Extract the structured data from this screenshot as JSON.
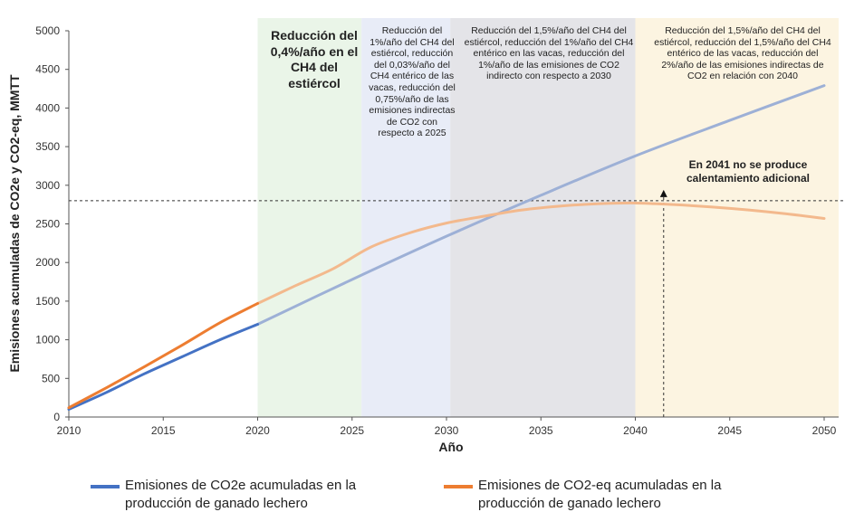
{
  "chart_data": {
    "type": "line",
    "xlabel": "Año",
    "ylabel": "Emisiones acumuladas de CO2e y CO2-eq, MMTT",
    "xlim": [
      2010,
      2050
    ],
    "ylim": [
      0,
      5000
    ],
    "xticks": [
      2010,
      2015,
      2020,
      2025,
      2030,
      2035,
      2040,
      2045,
      2050
    ],
    "yticks": [
      0,
      500,
      1000,
      1500,
      2000,
      2500,
      3000,
      3500,
      4000,
      4500,
      5000
    ],
    "grid": false,
    "legend_position": "bottom",
    "threshold": {
      "y": 2800,
      "style": "dashed"
    },
    "marker": {
      "x": 2041.5,
      "style": "dashed-arrow"
    },
    "bands": [
      {
        "x_start": 2020,
        "x_end": 2025.5,
        "color": "#eaf5e8",
        "text": "Reducción del 0,4%/año en el CH4 del estiércol"
      },
      {
        "x_start": 2025.5,
        "x_end": 2030.2,
        "color": "#e8ecf7",
        "text": "Reducción del 1%/año del CH4 del estiércol, reducción del 0,03%/año del CH4 entérico de las vacas, reducción del 0,75%/año de las emisiones indirectas de CO2 con respecto a 2025"
      },
      {
        "x_start": 2030.2,
        "x_end": 2040,
        "color": "#e4e4e8",
        "text": "Reducción del 1,5%/año del CH4 del estiércol, reducción del 1%/año del CH4 entérico en las vacas, reducción del 1%/año de las emisiones de CO2 indirecto con respecto a 2030"
      },
      {
        "x_start": 2040,
        "x_end": 2051,
        "color": "#fcf4e1",
        "text": "Reducción del 1,5%/año del CH4 del estiércol, reducción del 1,5%/año del CH4 entérico de las vacas, reducción del 2%/año de las emisiones indirectas de CO2 en relación con 2040"
      }
    ],
    "annotation": "En 2041 no se produce calentamiento adicional",
    "series": [
      {
        "name": "Emisiones de CO2e acumuladas en la producción de ganado lechero",
        "color": "#4472c4",
        "projection_color": "#9db0d6",
        "projection_from": 2020,
        "x": [
          2010,
          2012,
          2014,
          2016,
          2018,
          2020,
          2025,
          2030,
          2035,
          2040,
          2045,
          2050
        ],
        "values": [
          100,
          320,
          560,
          780,
          1000,
          1200,
          1780,
          2340,
          2870,
          3380,
          3840,
          4290
        ]
      },
      {
        "name": "Emisiones de CO2-eq acumuladas en la producción de ganado lechero",
        "color": "#ed7d31",
        "projection_color": "#f3b98d",
        "projection_from": 2020,
        "x": [
          2010,
          2012,
          2014,
          2016,
          2018,
          2020,
          2022,
          2024,
          2026,
          2028,
          2030,
          2032,
          2034,
          2036,
          2038,
          2040,
          2042,
          2044,
          2046,
          2048,
          2050
        ],
        "values": [
          120,
          380,
          650,
          930,
          1220,
          1470,
          1700,
          1920,
          2200,
          2380,
          2510,
          2600,
          2680,
          2730,
          2760,
          2770,
          2750,
          2720,
          2680,
          2630,
          2570
        ]
      }
    ]
  }
}
